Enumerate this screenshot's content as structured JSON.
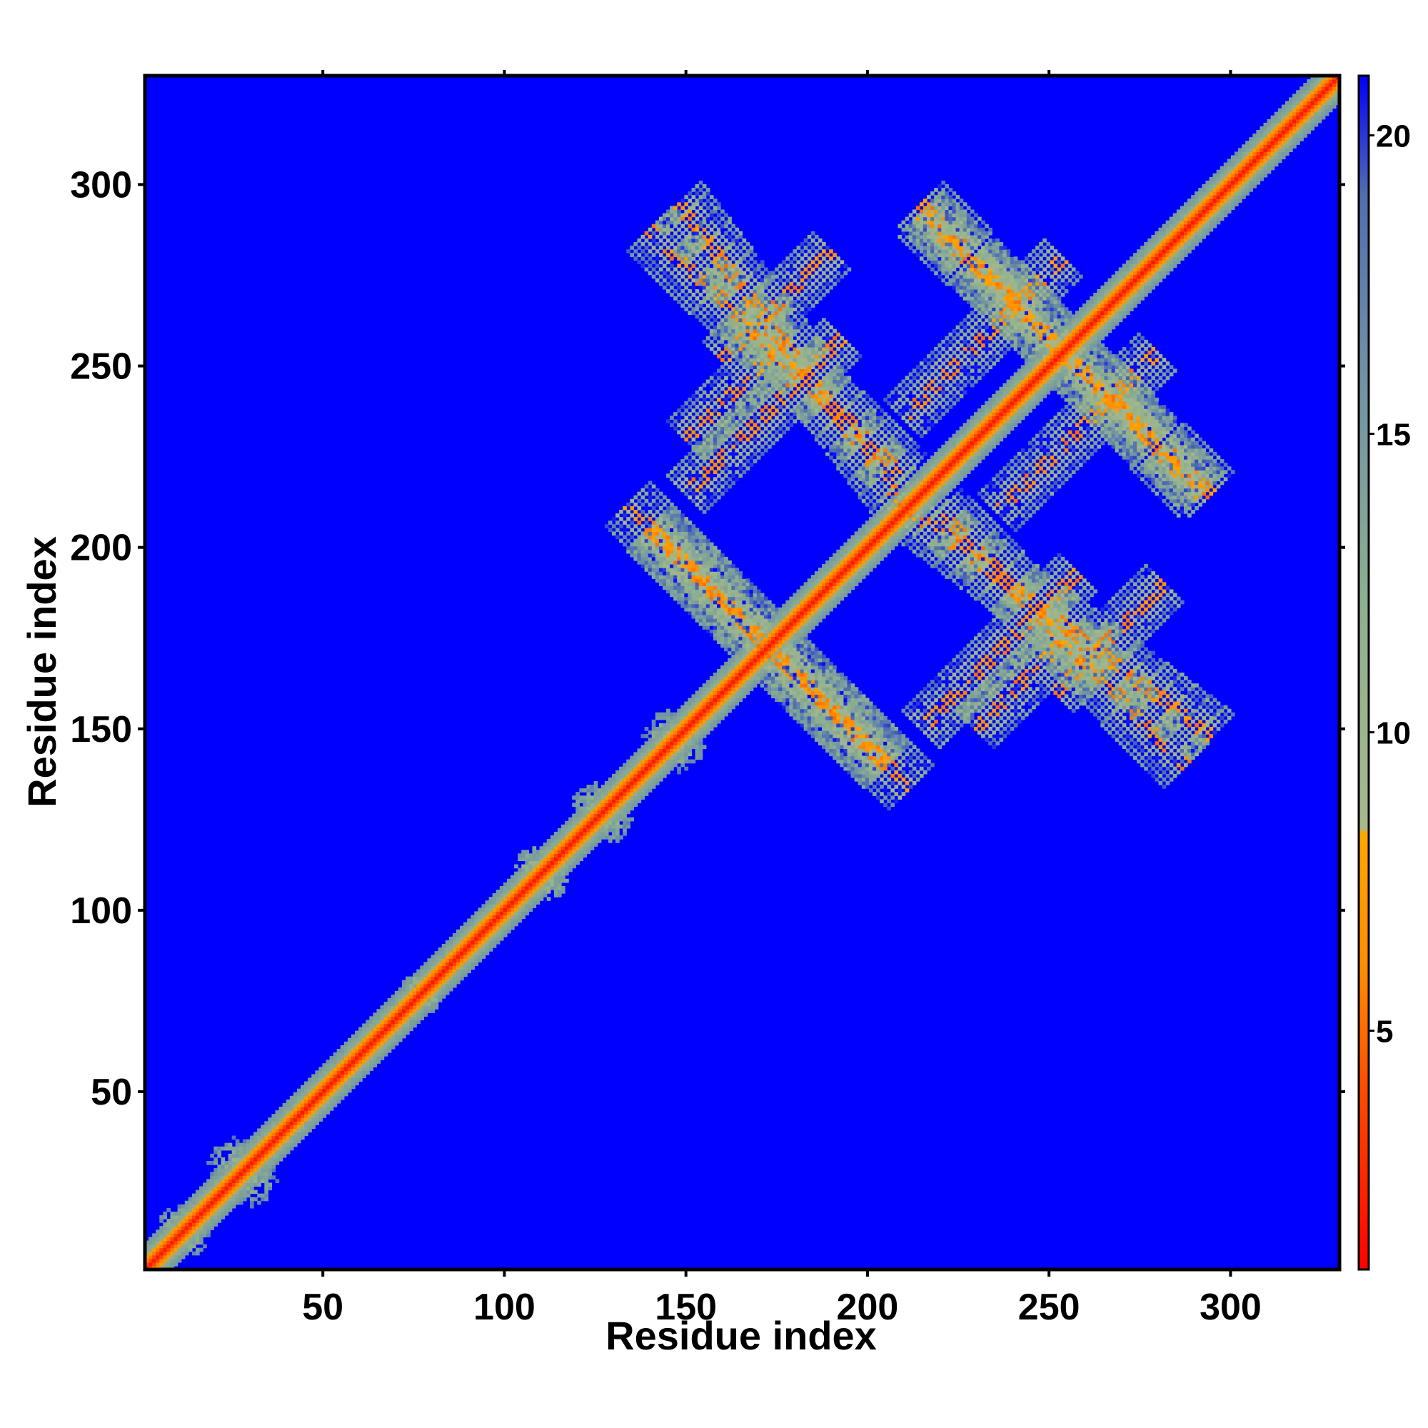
{
  "chart_data": {
    "type": "heatmap",
    "title": "",
    "xlabel": "Residue index",
    "ylabel": "Residue index",
    "xlim": [
      1,
      330
    ],
    "ylim": [
      1,
      330
    ],
    "x_ticks": [
      50,
      100,
      150,
      200,
      250,
      300
    ],
    "y_ticks": [
      50,
      100,
      150,
      200,
      250,
      300
    ],
    "x_tick_labels": [
      "50",
      "100",
      "150",
      "200",
      "250",
      "300"
    ],
    "y_tick_labels": [
      "50",
      "100",
      "150",
      "200",
      "250",
      "300"
    ],
    "colorbar": {
      "range": [
        1,
        21
      ],
      "ticks": [
        5,
        10,
        15,
        20
      ],
      "tick_labels": [
        "5",
        "10",
        "15",
        "20"
      ],
      "stops": [
        {
          "value": 1,
          "color": "#ff0000"
        },
        {
          "value": 4,
          "color": "#ff4a00"
        },
        {
          "value": 6,
          "color": "#ff8c00"
        },
        {
          "value": 8.3,
          "color": "#ffa500"
        },
        {
          "value": 8.4,
          "color": "#a7b88c"
        },
        {
          "value": 12,
          "color": "#8fb08f"
        },
        {
          "value": 16,
          "color": "#6f92a6"
        },
        {
          "value": 19,
          "color": "#4f6fb0"
        },
        {
          "value": 21,
          "color": "#0000ff"
        }
      ]
    },
    "background_value": 21,
    "diagonal": {
      "range": [
        1,
        330
      ],
      "core_value": 2,
      "inner_width": 3,
      "outer_width": 7,
      "outer_value": 11
    },
    "contact_bands": [
      {
        "kind": "antiparallel",
        "from": [
          140,
          288
        ],
        "to": [
          210,
          220
        ],
        "half_width": 3.5
      },
      {
        "kind": "antiparallel",
        "from": [
          134,
          212
        ],
        "to": [
          205,
          140
        ],
        "half_width": 3.5
      },
      {
        "kind": "antiparallel",
        "from": [
          215,
          292
        ],
        "to": [
          295,
          215
        ],
        "half_width": 3.5
      },
      {
        "kind": "antiparallel",
        "from": [
          210,
          212
        ],
        "to": [
          295,
          148
        ],
        "half_width": 3.5
      },
      {
        "kind": "parallel",
        "from": [
          160,
          252
        ],
        "to": [
          190,
          282
        ],
        "half_width": 3
      },
      {
        "kind": "parallel",
        "from": [
          150,
          230
        ],
        "to": [
          178,
          258
        ],
        "half_width": 3
      },
      {
        "kind": "parallel",
        "from": [
          236,
          210
        ],
        "to": [
          280,
          254
        ],
        "half_width": 3
      },
      {
        "kind": "parallel",
        "from": [
          215,
          150
        ],
        "to": [
          258,
          193
        ],
        "half_width": 3
      },
      {
        "kind": "cluster",
        "center": [
          125,
          128
        ],
        "radius": 7
      },
      {
        "kind": "cluster",
        "center": [
          108,
          112
        ],
        "radius": 5
      },
      {
        "kind": "cluster",
        "center": [
          145,
          148
        ],
        "radius": 7
      },
      {
        "kind": "cluster",
        "center": [
          25,
          30
        ],
        "radius": 7
      },
      {
        "kind": "cluster",
        "center": [
          10,
          12
        ],
        "radius": 6
      },
      {
        "kind": "cluster",
        "center": [
          75,
          78
        ],
        "radius": 4
      }
    ]
  }
}
